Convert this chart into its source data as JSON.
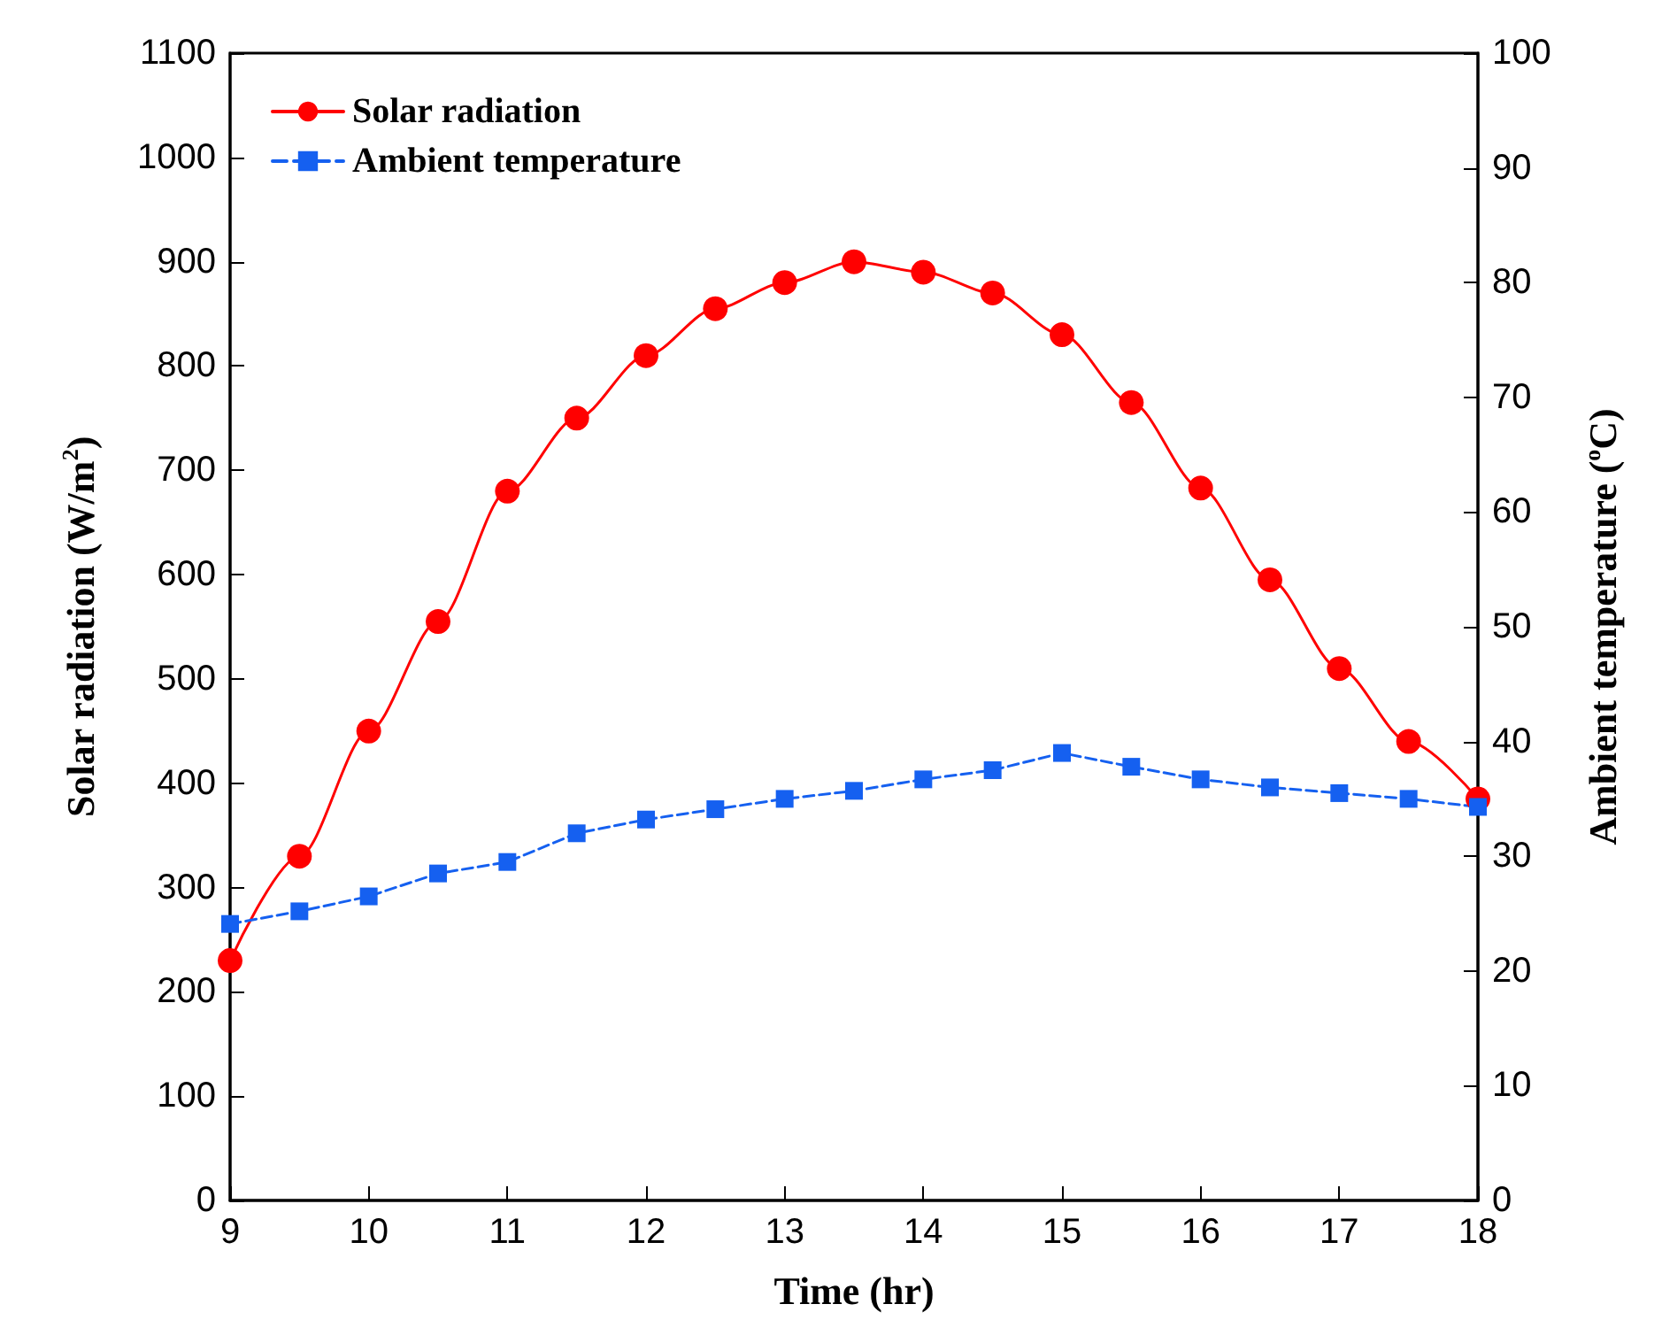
{
  "chart_data": {
    "type": "line",
    "xlabel": "Time (hr)",
    "ylabel": "Solar radiation (W/m$^{2}$)",
    "y2label": "Ambient temperature ($^{o}$C)",
    "x": [
      9,
      9.5,
      10,
      10.5,
      11,
      11.5,
      12,
      12.5,
      13,
      13.5,
      14,
      14.5,
      15,
      15.5,
      16,
      16.5,
      17,
      17.5,
      18
    ],
    "series": [
      {
        "name": "Solar radiation",
        "color": "#ff0000",
        "marker": "circle",
        "line_style": "solid",
        "values": [
          230,
          330,
          450,
          555,
          680,
          750,
          810,
          855,
          880,
          900,
          890,
          870,
          830,
          765,
          683,
          595,
          510,
          440,
          385
        ]
      },
      {
        "name": "Ambient temperature",
        "color": "#1560f0",
        "marker": "square",
        "line_style": "dashed",
        "axis": "y2",
        "values": [
          24.1,
          25.2,
          26.5,
          28.5,
          29.5,
          32,
          33.2,
          34.1,
          35,
          35.7,
          36.7,
          37.5,
          39,
          37.8,
          36.7,
          36,
          35.5,
          35,
          34.3
        ]
      }
    ],
    "xlim": [
      9,
      18
    ],
    "xticks": [
      9,
      10,
      11,
      12,
      13,
      14,
      15,
      16,
      17,
      18
    ],
    "ylim": [
      0,
      1100
    ],
    "yticks": [
      0,
      100,
      200,
      300,
      400,
      500,
      600,
      700,
      800,
      900,
      1000,
      1100
    ],
    "y2lim": [
      0,
      100
    ],
    "y2ticks": [
      0,
      10,
      20,
      30,
      40,
      50,
      60,
      70,
      80,
      90,
      100
    ],
    "grid": false,
    "legend": "top left"
  }
}
